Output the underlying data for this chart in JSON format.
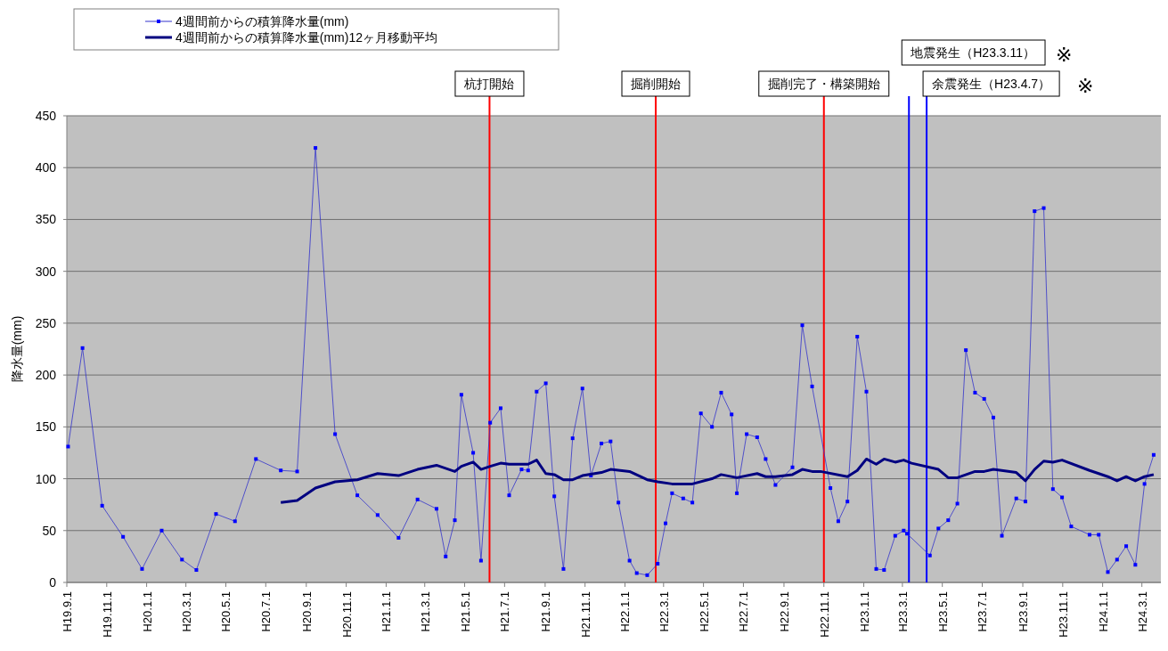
{
  "chart_data": {
    "type": "line",
    "ylabel": "降水量(mm)",
    "xlim": [
      "2007-09-01",
      "2012-03-30"
    ],
    "ylim": [
      0,
      450
    ],
    "yticks": [
      0,
      50,
      100,
      150,
      200,
      250,
      300,
      350,
      400,
      450
    ],
    "xticks": [
      {
        "value": "2007-09-01",
        "label": "H19.9.1"
      },
      {
        "value": "2007-11-01",
        "label": "H19.11.1"
      },
      {
        "value": "2008-01-01",
        "label": "H20.1.1"
      },
      {
        "value": "2008-03-01",
        "label": "H20.3.1"
      },
      {
        "value": "2008-05-01",
        "label": "H20.5.1"
      },
      {
        "value": "2008-07-01",
        "label": "H20.7.1"
      },
      {
        "value": "2008-09-01",
        "label": "H20.9.1"
      },
      {
        "value": "2008-11-01",
        "label": "H20.11.1"
      },
      {
        "value": "2009-01-01",
        "label": "H21.1.1"
      },
      {
        "value": "2009-03-01",
        "label": "H21.3.1"
      },
      {
        "value": "2009-05-01",
        "label": "H21.5.1"
      },
      {
        "value": "2009-07-01",
        "label": "H21.7.1"
      },
      {
        "value": "2009-09-01",
        "label": "H21.9.1"
      },
      {
        "value": "2009-11-01",
        "label": "H21.11.1"
      },
      {
        "value": "2010-01-01",
        "label": "H22.1.1"
      },
      {
        "value": "2010-03-01",
        "label": "H22.3.1"
      },
      {
        "value": "2010-05-01",
        "label": "H22.5.1"
      },
      {
        "value": "2010-07-01",
        "label": "H22.7.1"
      },
      {
        "value": "2010-09-01",
        "label": "H22.9.1"
      },
      {
        "value": "2010-11-01",
        "label": "H22.11.1"
      },
      {
        "value": "2011-01-01",
        "label": "H23.1.1"
      },
      {
        "value": "2011-03-01",
        "label": "H23.3.1"
      },
      {
        "value": "2011-05-01",
        "label": "H23.5.1"
      },
      {
        "value": "2011-07-01",
        "label": "H23.7.1"
      },
      {
        "value": "2011-09-01",
        "label": "H23.9.1"
      },
      {
        "value": "2011-11-01",
        "label": "H23.11.1"
      },
      {
        "value": "2012-01-01",
        "label": "H24.1.1"
      },
      {
        "value": "2012-03-01",
        "label": "H24.3.1"
      }
    ],
    "grid": "y",
    "legend": "top left",
    "line_style": "solid",
    "series": [
      {
        "name": "4週間前からの積算降水量(mm)",
        "color": "#3333cc",
        "marker": "square",
        "x": [
          "2007-09-03",
          "2007-09-25",
          "2007-10-25",
          "2007-11-26",
          "2007-12-25",
          "2008-01-24",
          "2008-02-24",
          "2008-03-17",
          "2008-04-16",
          "2008-05-15",
          "2008-06-16",
          "2008-07-24",
          "2008-08-18",
          "2008-09-15",
          "2008-10-15",
          "2008-11-18",
          "2008-12-19",
          "2009-01-20",
          "2009-02-18",
          "2009-03-19",
          "2009-04-02",
          "2009-04-16",
          "2009-04-26",
          "2009-05-14",
          "2009-05-26",
          "2009-06-09",
          "2009-06-25",
          "2009-07-08",
          "2009-07-27",
          "2009-08-06",
          "2009-08-19",
          "2009-09-02",
          "2009-09-15",
          "2009-09-29",
          "2009-10-13",
          "2009-10-28",
          "2009-11-10",
          "2009-11-26",
          "2009-12-10",
          "2009-12-22",
          "2010-01-08",
          "2010-01-19",
          "2010-02-04",
          "2010-02-20",
          "2010-03-04",
          "2010-03-14",
          "2010-03-31",
          "2010-04-14",
          "2010-04-27",
          "2010-05-14",
          "2010-05-28",
          "2010-06-13",
          "2010-06-21",
          "2010-07-06",
          "2010-07-22",
          "2010-08-04",
          "2010-08-19",
          "2010-09-14",
          "2010-09-29",
          "2010-10-14",
          "2010-11-11",
          "2010-11-23",
          "2010-12-07",
          "2010-12-22",
          "2011-01-05",
          "2011-01-20",
          "2011-02-01",
          "2011-02-18",
          "2011-03-03",
          "2011-03-08",
          "2011-04-12",
          "2011-04-25",
          "2011-05-10",
          "2011-05-24",
          "2011-06-06",
          "2011-06-20",
          "2011-07-04",
          "2011-07-18",
          "2011-07-31",
          "2011-08-22",
          "2011-09-05",
          "2011-09-19",
          "2011-10-03",
          "2011-10-17",
          "2011-10-31",
          "2011-11-14",
          "2011-12-12",
          "2011-12-26",
          "2012-01-09",
          "2012-01-23",
          "2012-02-06",
          "2012-02-20",
          "2012-03-05",
          "2012-03-19"
        ],
        "values": [
          131,
          226,
          74,
          44,
          13,
          50,
          22,
          12,
          66,
          59,
          119,
          108,
          107,
          419,
          143,
          84,
          65,
          43,
          80,
          71,
          25,
          60,
          181,
          125,
          21,
          154,
          168,
          84,
          109,
          108,
          184,
          192,
          83,
          13,
          139,
          187,
          103,
          134,
          136,
          77,
          21,
          9,
          7,
          18,
          57,
          86,
          81,
          77,
          163,
          150,
          183,
          162,
          86,
          143,
          140,
          119,
          94,
          111,
          248,
          189,
          91,
          59,
          78,
          237,
          184,
          13,
          12,
          45,
          50,
          47,
          26,
          52,
          60,
          76,
          224,
          183,
          177,
          159,
          45,
          81,
          78,
          358,
          361,
          90,
          82,
          54,
          46,
          46,
          10,
          22,
          35,
          17,
          95,
          123
        ]
      },
      {
        "name": "4週間前からの積算降水量(mm)12ヶ月移動平均",
        "color": "#000080",
        "x": [
          "2008-07-24",
          "2008-08-18",
          "2008-09-15",
          "2008-10-15",
          "2008-11-18",
          "2008-12-19",
          "2009-01-20",
          "2009-02-18",
          "2009-03-19",
          "2009-04-16",
          "2009-04-26",
          "2009-05-14",
          "2009-05-26",
          "2009-06-09",
          "2009-06-25",
          "2009-07-08",
          "2009-08-06",
          "2009-08-19",
          "2009-09-02",
          "2009-09-15",
          "2009-09-29",
          "2009-10-13",
          "2009-10-28",
          "2009-11-26",
          "2009-12-10",
          "2010-01-08",
          "2010-02-04",
          "2010-02-20",
          "2010-03-14",
          "2010-04-14",
          "2010-05-14",
          "2010-05-28",
          "2010-06-21",
          "2010-07-22",
          "2010-08-04",
          "2010-08-19",
          "2010-09-14",
          "2010-09-29",
          "2010-10-14",
          "2010-10-27",
          "2010-12-07",
          "2010-12-22",
          "2011-01-05",
          "2011-01-20",
          "2011-02-01",
          "2011-02-18",
          "2011-03-03",
          "2011-03-15",
          "2011-04-25",
          "2011-05-10",
          "2011-05-24",
          "2011-06-20",
          "2011-07-04",
          "2011-07-18",
          "2011-08-22",
          "2011-09-05",
          "2011-09-19",
          "2011-10-03",
          "2011-10-17",
          "2011-10-31",
          "2011-12-12",
          "2012-01-09",
          "2012-01-23",
          "2012-02-06",
          "2012-02-20",
          "2012-03-05",
          "2012-03-19"
        ],
        "values": [
          77,
          79,
          91,
          97,
          99,
          105,
          103,
          109,
          113,
          107,
          112,
          116,
          109,
          112,
          115,
          114,
          114,
          118,
          105,
          104,
          99,
          99,
          103,
          106,
          109,
          107,
          99,
          97,
          95,
          95,
          100,
          104,
          101,
          105,
          102,
          102,
          104,
          109,
          107,
          107,
          102,
          108,
          119,
          114,
          119,
          116,
          118,
          115,
          109,
          101,
          101,
          107,
          107,
          109,
          106,
          98,
          109,
          117,
          116,
          118,
          108,
          102,
          98,
          102,
          98,
          102,
          104
        ]
      }
    ],
    "ref_lines": [
      {
        "axis": "x",
        "value": "2009-06-08",
        "label": "杭打開始",
        "color": "#ff0000"
      },
      {
        "axis": "x",
        "value": "2010-02-17",
        "label": "掘削開始",
        "color": "#ff0000"
      },
      {
        "axis": "x",
        "value": "2010-11-01",
        "label": "掘削完了・構築開始",
        "color": "#ff0000"
      },
      {
        "axis": "x",
        "value": "2011-03-11",
        "label": "地震発生（H23.3.11）",
        "color": "#0000ff"
      },
      {
        "axis": "x",
        "value": "2011-04-07",
        "label": "余震発生（H23.4.7）",
        "color": "#0000ff"
      }
    ],
    "annotations": [
      "※",
      "※"
    ]
  }
}
